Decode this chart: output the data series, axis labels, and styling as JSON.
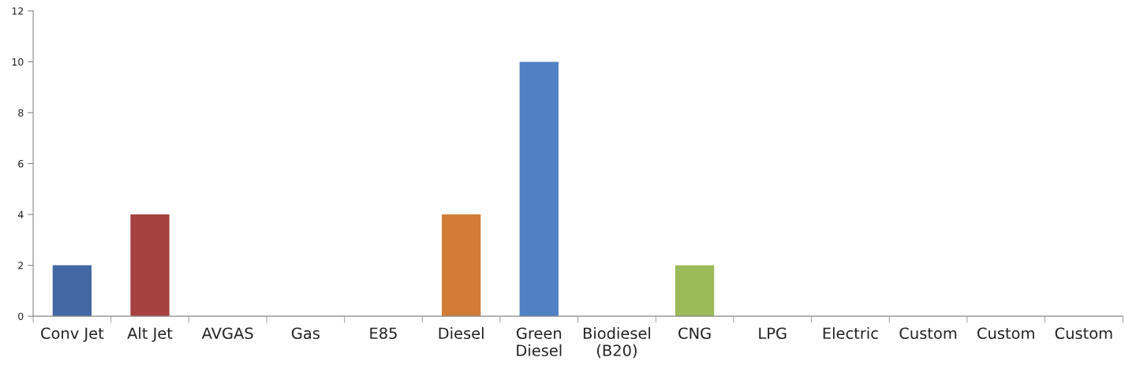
{
  "chart_data": {
    "type": "bar",
    "categories": [
      "Conv Jet",
      "Alt Jet",
      "AVGAS",
      "Gas",
      "E85",
      "Diesel",
      "Green\nDiesel",
      "Biodiesel\n(B20)",
      "CNG",
      "LPG",
      "Electric",
      "Custom",
      "Custom",
      "Custom"
    ],
    "values": [
      2,
      4,
      0,
      0,
      0,
      4,
      10,
      0,
      2,
      0,
      0,
      0,
      0,
      0
    ],
    "colors": [
      "#4368a3",
      "#a54240",
      "#4f81bd",
      "#4f81bd",
      "#4f81bd",
      "#d27c38",
      "#4f81c4",
      "#4f81bd",
      "#9bbb59",
      "#4f81bd",
      "#4f81bd",
      "#4f81bd",
      "#4f81bd",
      "#4f81bd"
    ],
    "ylim": [
      0,
      12
    ],
    "yticks": [
      0,
      2,
      4,
      6,
      8,
      10,
      12
    ],
    "grid": false,
    "legend": false
  }
}
